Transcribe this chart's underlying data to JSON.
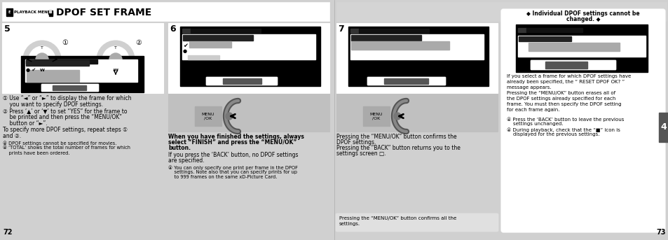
{
  "bg_color": "#d0d0d0",
  "white": "#ffffff",
  "black": "#000000",
  "dark_gray": "#333333",
  "light_gray": "#c0c0c0",
  "med_gray": "#888888",
  "title_text": "DPOF SET FRAME",
  "playback_menu_text": "PLAYBACK MENU",
  "page_left": "72",
  "page_right": "73",
  "header_bg": "#d4d4d4",
  "box_border": "#555555",
  "screen_bg": "#1a1a1a",
  "note_bg": "#e8e8e8",
  "step6_bold": "When you have finished the settings, always\nselect “FINISH” and press the “MENU/OK”\nbutton.",
  "step6_normal": "If you press the ‘BACK’ button, no DPOF settings\nare specified.",
  "step6_note": "④ You can only specify one print per frame in the DPOF\n    settings. Note also that you can specify prints for up\n    to 999 frames on the same xD-Picture Card.",
  "chapter_num": "4"
}
